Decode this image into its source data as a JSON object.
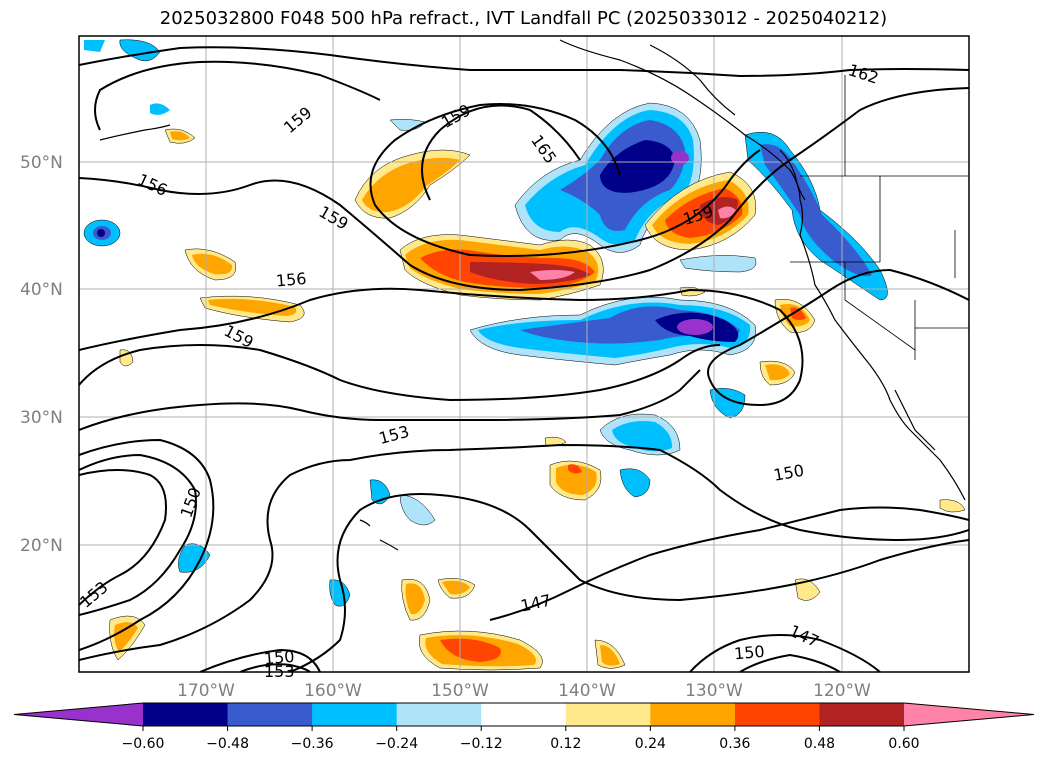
{
  "title": "2025032800 F048 500 hPa refract., IVT Landfall PC (2025033012 - 2025040212)",
  "map": {
    "lat_labels": [
      "50°N",
      "40°N",
      "30°N",
      "20°N"
    ],
    "lon_labels": [
      "170°W",
      "160°W",
      "150°W",
      "140°W",
      "130°W",
      "120°W"
    ]
  },
  "contours": [
    {
      "label": "162",
      "level": 162
    },
    {
      "label": "159",
      "level": 159
    },
    {
      "label": "165",
      "level": 165
    },
    {
      "label": "156",
      "level": 156
    },
    {
      "label": "159",
      "level": 159
    },
    {
      "label": "159",
      "level": 159
    },
    {
      "label": "156",
      "level": 156
    },
    {
      "label": "159",
      "level": 159
    },
    {
      "label": "159",
      "level": 159
    },
    {
      "label": "153",
      "level": 153
    },
    {
      "label": "150",
      "level": 150
    },
    {
      "label": "150",
      "level": 150
    },
    {
      "label": "153",
      "level": 153
    },
    {
      "label": "147",
      "level": 147
    },
    {
      "label": "150",
      "level": 150
    },
    {
      "label": "147",
      "level": 147
    },
    {
      "label": "150",
      "level": 150
    },
    {
      "label": "153",
      "level": 153
    }
  ],
  "colorbar": {
    "colors": [
      "#9932cc",
      "#00008b",
      "#3a5bcd",
      "#00bfff",
      "#aee3fa",
      "#ffffff",
      "#ffe98a",
      "#ffa500",
      "#ff4500",
      "#b22222",
      "#ff83a8"
    ],
    "tick_labels": [
      "−0.60",
      "−0.48",
      "−0.36",
      "−0.24",
      "−0.12",
      "0.12",
      "0.24",
      "0.36",
      "0.48",
      "0.60"
    ]
  },
  "chart_data": {
    "type": "heatmap",
    "title": "2025032800 F048 500 hPa refract., IVT Landfall PC (2025033012 - 2025040212)",
    "fill_levels": [
      -0.6,
      -0.48,
      -0.36,
      -0.24,
      -0.12,
      0.12,
      0.24,
      0.36,
      0.48,
      0.6
    ],
    "contour_levels": [
      147,
      150,
      153,
      156,
      159,
      162,
      165
    ],
    "lon_range": [
      -180,
      -110
    ],
    "lat_range": [
      10,
      60
    ],
    "grid": true
  }
}
